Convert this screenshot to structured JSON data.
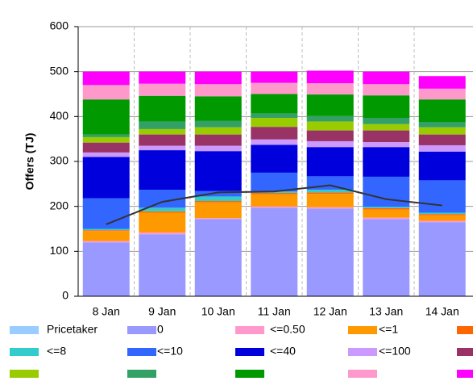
{
  "chart_data": {
    "type": "bar",
    "stacked": true,
    "y_label": "Offers (TJ)",
    "categories": [
      "8 Jan",
      "9 Jan",
      "10 Jan",
      "11 Jan",
      "12 Jan",
      "13 Jan",
      "14 Jan"
    ],
    "ylim": [
      0,
      600
    ],
    "yticks": [
      0,
      100,
      200,
      300,
      400,
      500,
      600
    ],
    "grid": true,
    "series": [
      {
        "name": "Pricetaker",
        "color": "#99ccff",
        "values": [
          0,
          0,
          0,
          0,
          0,
          0,
          0
        ]
      },
      {
        "name": "0",
        "color": "#9999ff",
        "values": [
          120,
          138,
          172,
          197,
          195,
          172,
          165
        ]
      },
      {
        "name": "<=0.50",
        "color": "#ff99cc",
        "values": [
          3,
          4,
          2,
          3,
          3,
          3,
          3
        ]
      },
      {
        "name": "<=1",
        "color": "#ff9900",
        "values": [
          22,
          44,
          35,
          27,
          30,
          18,
          12
        ]
      },
      {
        "color": "#ff6600",
        "values": [
          2,
          3,
          3,
          3,
          3,
          3,
          3
        ]
      },
      {
        "name": "<=8",
        "color": "#33cccc",
        "values": [
          3,
          8,
          10,
          3,
          6,
          3,
          3
        ]
      },
      {
        "name": "<=10",
        "color": "#3366ff",
        "values": [
          68,
          40,
          12,
          42,
          30,
          67,
          72
        ]
      },
      {
        "name": "<=40",
        "color": "#0000dd",
        "values": [
          92,
          88,
          89,
          62,
          65,
          66,
          64
        ]
      },
      {
        "name": "<=100",
        "color": "#cc99ff",
        "values": [
          10,
          10,
          12,
          12,
          13,
          11,
          14
        ]
      },
      {
        "color": "#993366",
        "values": [
          22,
          25,
          25,
          28,
          24,
          26,
          24
        ]
      },
      {
        "color": "#99cc00",
        "values": [
          12,
          12,
          16,
          20,
          20,
          14,
          16
        ]
      },
      {
        "color": "#33a066",
        "values": [
          6,
          17,
          14,
          10,
          12,
          14,
          12
        ]
      },
      {
        "color": "#009900",
        "values": [
          78,
          57,
          55,
          43,
          48,
          50,
          50
        ]
      },
      {
        "color": "#ff99cc",
        "values": [
          32,
          27,
          27,
          25,
          25,
          25,
          24
        ]
      },
      {
        "color": "#ff00ff",
        "values": [
          30,
          27,
          28,
          25,
          28,
          28,
          28
        ]
      }
    ],
    "line": {
      "color": "#333333",
      "values": [
        160,
        210,
        231,
        233,
        247,
        216,
        202
      ]
    }
  }
}
